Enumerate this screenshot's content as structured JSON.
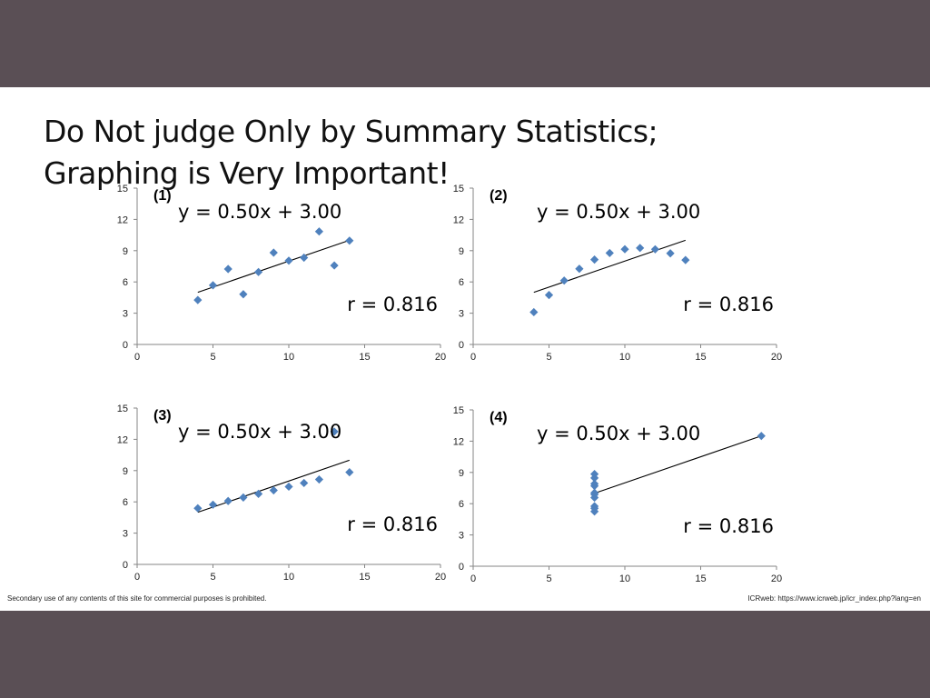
{
  "slide": {
    "title_line1": "Do Not judge Only by Summary Statistics;",
    "title_line2": "Graphing is Very Important!",
    "footer_left": "Secondary use of any contents of this site for commercial purposes is prohibited.",
    "footer_right": "ICRweb: https://www.icrweb.jp/icr_index.php?lang=en"
  },
  "chart_data": [
    {
      "type": "scatter",
      "panel_label": "(1)",
      "equation": "y = 0.50x + 3.00",
      "r_label": "r = 0.816",
      "xlim": [
        0,
        20
      ],
      "ylim": [
        0,
        15
      ],
      "xticks": [
        0,
        5,
        10,
        15,
        20
      ],
      "yticks": [
        0,
        3,
        6,
        9,
        12,
        15
      ],
      "x": [
        10,
        8,
        13,
        9,
        11,
        14,
        6,
        4,
        12,
        7,
        5
      ],
      "y": [
        8.04,
        6.95,
        7.58,
        8.81,
        8.33,
        9.96,
        7.24,
        4.26,
        10.84,
        4.82,
        5.68
      ],
      "trendline": {
        "slope": 0.5,
        "intercept": 3.0,
        "x_range": [
          4,
          14
        ]
      },
      "marker_color": "#4f81bd"
    },
    {
      "type": "scatter",
      "panel_label": "(2)",
      "equation": "y = 0.50x + 3.00",
      "r_label": "r = 0.816",
      "xlim": [
        0,
        20
      ],
      "ylim": [
        0,
        15
      ],
      "xticks": [
        0,
        5,
        10,
        15,
        20
      ],
      "yticks": [
        0,
        3,
        6,
        9,
        12,
        15
      ],
      "x": [
        10,
        8,
        13,
        9,
        11,
        14,
        6,
        4,
        12,
        7,
        5
      ],
      "y": [
        9.14,
        8.14,
        8.74,
        8.77,
        9.26,
        8.1,
        6.13,
        3.1,
        9.13,
        7.26,
        4.74
      ],
      "trendline": {
        "slope": 0.5,
        "intercept": 3.0,
        "x_range": [
          4,
          14
        ]
      },
      "marker_color": "#4f81bd"
    },
    {
      "type": "scatter",
      "panel_label": "(3)",
      "equation": "y = 0.50x + 3.00",
      "r_label": "r = 0.816",
      "xlim": [
        0,
        20
      ],
      "ylim": [
        0,
        15
      ],
      "xticks": [
        0,
        5,
        10,
        15,
        20
      ],
      "yticks": [
        0,
        3,
        6,
        9,
        12,
        15
      ],
      "x": [
        10,
        8,
        13,
        9,
        11,
        14,
        6,
        4,
        12,
        7,
        5
      ],
      "y": [
        7.46,
        6.77,
        12.74,
        7.11,
        7.81,
        8.84,
        6.08,
        5.39,
        8.15,
        6.42,
        5.73
      ],
      "trendline": {
        "slope": 0.5,
        "intercept": 3.0,
        "x_range": [
          4,
          14
        ]
      },
      "marker_color": "#4f81bd"
    },
    {
      "type": "scatter",
      "panel_label": "(4)",
      "equation": "y = 0.50x + 3.00",
      "r_label": "r = 0.816",
      "xlim": [
        0,
        20
      ],
      "ylim": [
        0,
        15
      ],
      "xticks": [
        0,
        5,
        10,
        15,
        20
      ],
      "yticks": [
        0,
        3,
        6,
        9,
        12,
        15
      ],
      "x": [
        8,
        8,
        8,
        8,
        8,
        8,
        8,
        19,
        8,
        8,
        8
      ],
      "y": [
        6.58,
        5.76,
        7.71,
        8.84,
        8.47,
        7.04,
        5.25,
        12.5,
        5.56,
        7.91,
        6.89
      ],
      "trendline": {
        "slope": 0.5,
        "intercept": 3.0,
        "x_range": [
          8,
          19
        ]
      },
      "marker_color": "#4f81bd"
    }
  ]
}
